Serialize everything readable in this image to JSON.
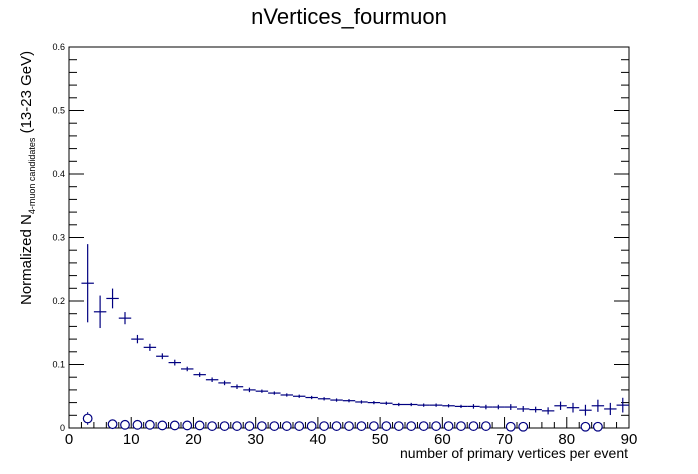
{
  "chart_data": {
    "type": "scatter",
    "title": "nVertices_fourmuon",
    "xlabel": "number of primary vertices per event",
    "ylabel": {
      "prefix": "Normalized N",
      "subscript": "4-muon candidates",
      "suffix": " (13-23 GeV)"
    },
    "xlim": [
      0,
      90
    ],
    "ylim": [
      0,
      0.6
    ],
    "x_ticks": [
      "0",
      "10",
      "20",
      "30",
      "40",
      "50",
      "60",
      "70",
      "80",
      "90"
    ],
    "y_ticks": [
      "0",
      "0.1",
      "0.2",
      "0.3",
      "0.4",
      "0.5",
      "0.6"
    ],
    "series": [
      {
        "marker": "cross",
        "color": "#000080",
        "x_halfwidth": 1,
        "x": [
          3,
          5,
          7,
          9,
          11,
          13,
          15,
          17,
          19,
          21,
          23,
          25,
          27,
          29,
          31,
          33,
          35,
          37,
          39,
          41,
          43,
          45,
          47,
          49,
          51,
          53,
          55,
          57,
          59,
          61,
          63,
          65,
          67,
          69,
          71,
          73,
          75,
          77,
          79,
          81,
          83,
          85,
          87,
          89
        ],
        "y": [
          0.228,
          0.183,
          0.204,
          0.173,
          0.14,
          0.127,
          0.113,
          0.103,
          0.093,
          0.084,
          0.076,
          0.071,
          0.065,
          0.06,
          0.058,
          0.055,
          0.052,
          0.05,
          0.048,
          0.046,
          0.044,
          0.043,
          0.041,
          0.04,
          0.039,
          0.037,
          0.037,
          0.036,
          0.036,
          0.035,
          0.034,
          0.034,
          0.033,
          0.033,
          0.033,
          0.03,
          0.029,
          0.027,
          0.035,
          0.032,
          0.028,
          0.035,
          0.03,
          0.036
        ],
        "err": [
          0.06,
          0.024,
          0.014,
          0.008,
          0.005,
          0.004,
          0.003,
          0.003,
          0.002,
          0.002,
          0.002,
          0.002,
          0.002,
          0.002,
          0.001,
          0.001,
          0.001,
          0.001,
          0.001,
          0.001,
          0.001,
          0.001,
          0.001,
          0.001,
          0.001,
          0.001,
          0.001,
          0.001,
          0.001,
          0.001,
          0.001,
          0.002,
          0.002,
          0.002,
          0.003,
          0.003,
          0.003,
          0.004,
          0.005,
          0.006,
          0.007,
          0.008,
          0.008,
          0.01
        ]
      },
      {
        "marker": "open-circle",
        "color": "#000080",
        "x": [
          3,
          7,
          9,
          11,
          13,
          15,
          17,
          19,
          21,
          23,
          25,
          27,
          29,
          31,
          33,
          35,
          37,
          39,
          41,
          43,
          45,
          47,
          49,
          51,
          53,
          55,
          57,
          59,
          61,
          63,
          65,
          67,
          71,
          73,
          83,
          85
        ],
        "y": [
          0.015,
          0.006,
          0.005,
          0.005,
          0.005,
          0.004,
          0.004,
          0.004,
          0.004,
          0.003,
          0.003,
          0.003,
          0.003,
          0.003,
          0.003,
          0.003,
          0.003,
          0.003,
          0.003,
          0.003,
          0.003,
          0.003,
          0.003,
          0.003,
          0.003,
          0.003,
          0.003,
          0.003,
          0.003,
          0.003,
          0.003,
          0.003,
          0.002,
          0.002,
          0.002,
          0.002
        ],
        "err": [
          0.01,
          0,
          0,
          0,
          0,
          0,
          0,
          0,
          0,
          0,
          0,
          0,
          0,
          0,
          0,
          0,
          0,
          0,
          0,
          0,
          0,
          0,
          0,
          0,
          0,
          0,
          0,
          0,
          0,
          0,
          0,
          0,
          0,
          0,
          0,
          0
        ]
      }
    ]
  }
}
